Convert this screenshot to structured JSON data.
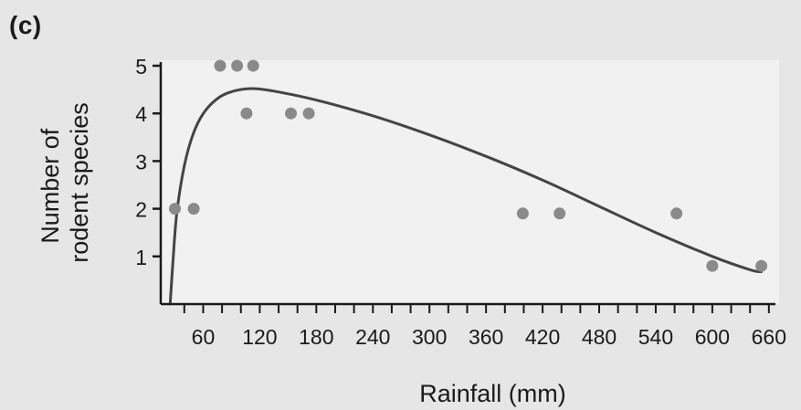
{
  "panel_label": "(c)",
  "colors": {
    "background": "#e6e6e6",
    "plot_area": "#f1f1f1",
    "axis": "#1a1a1a",
    "curve": "#444444",
    "points": "#8a8a8a"
  },
  "chart_data": {
    "type": "scatter",
    "xlabel": "Rainfall (mm)",
    "ylabel_lines": [
      "Number of",
      "rodent species"
    ],
    "xlim": [
      15,
      665
    ],
    "ylim": [
      0,
      5
    ],
    "x_ticks": [
      60,
      120,
      180,
      240,
      300,
      360,
      420,
      480,
      540,
      600,
      660
    ],
    "x_minor_step": 20,
    "y_ticks": [
      1,
      2,
      3,
      4,
      5
    ],
    "points": [
      {
        "x": 30,
        "y": 2
      },
      {
        "x": 50,
        "y": 2
      },
      {
        "x": 78,
        "y": 5
      },
      {
        "x": 96,
        "y": 5
      },
      {
        "x": 113,
        "y": 5
      },
      {
        "x": 106,
        "y": 4
      },
      {
        "x": 153,
        "y": 4
      },
      {
        "x": 172,
        "y": 4
      },
      {
        "x": 399,
        "y": 1.9
      },
      {
        "x": 438,
        "y": 1.9
      },
      {
        "x": 562,
        "y": 1.9
      },
      {
        "x": 600,
        "y": 0.8
      },
      {
        "x": 652,
        "y": 0.8
      }
    ],
    "fit_curve": [
      {
        "x": 25,
        "y": 0
      },
      {
        "x": 28,
        "y": 0.9
      },
      {
        "x": 32,
        "y": 1.9
      },
      {
        "x": 40,
        "y": 2.9
      },
      {
        "x": 50,
        "y": 3.6
      },
      {
        "x": 62,
        "y": 4.05
      },
      {
        "x": 78,
        "y": 4.35
      },
      {
        "x": 95,
        "y": 4.48
      },
      {
        "x": 115,
        "y": 4.52
      },
      {
        "x": 140,
        "y": 4.45
      },
      {
        "x": 180,
        "y": 4.28
      },
      {
        "x": 240,
        "y": 3.95
      },
      {
        "x": 300,
        "y": 3.55
      },
      {
        "x": 360,
        "y": 3.1
      },
      {
        "x": 420,
        "y": 2.6
      },
      {
        "x": 480,
        "y": 2.05
      },
      {
        "x": 540,
        "y": 1.5
      },
      {
        "x": 600,
        "y": 1.0
      },
      {
        "x": 640,
        "y": 0.72
      },
      {
        "x": 652,
        "y": 0.68
      }
    ],
    "grid": false,
    "legend": "none"
  }
}
